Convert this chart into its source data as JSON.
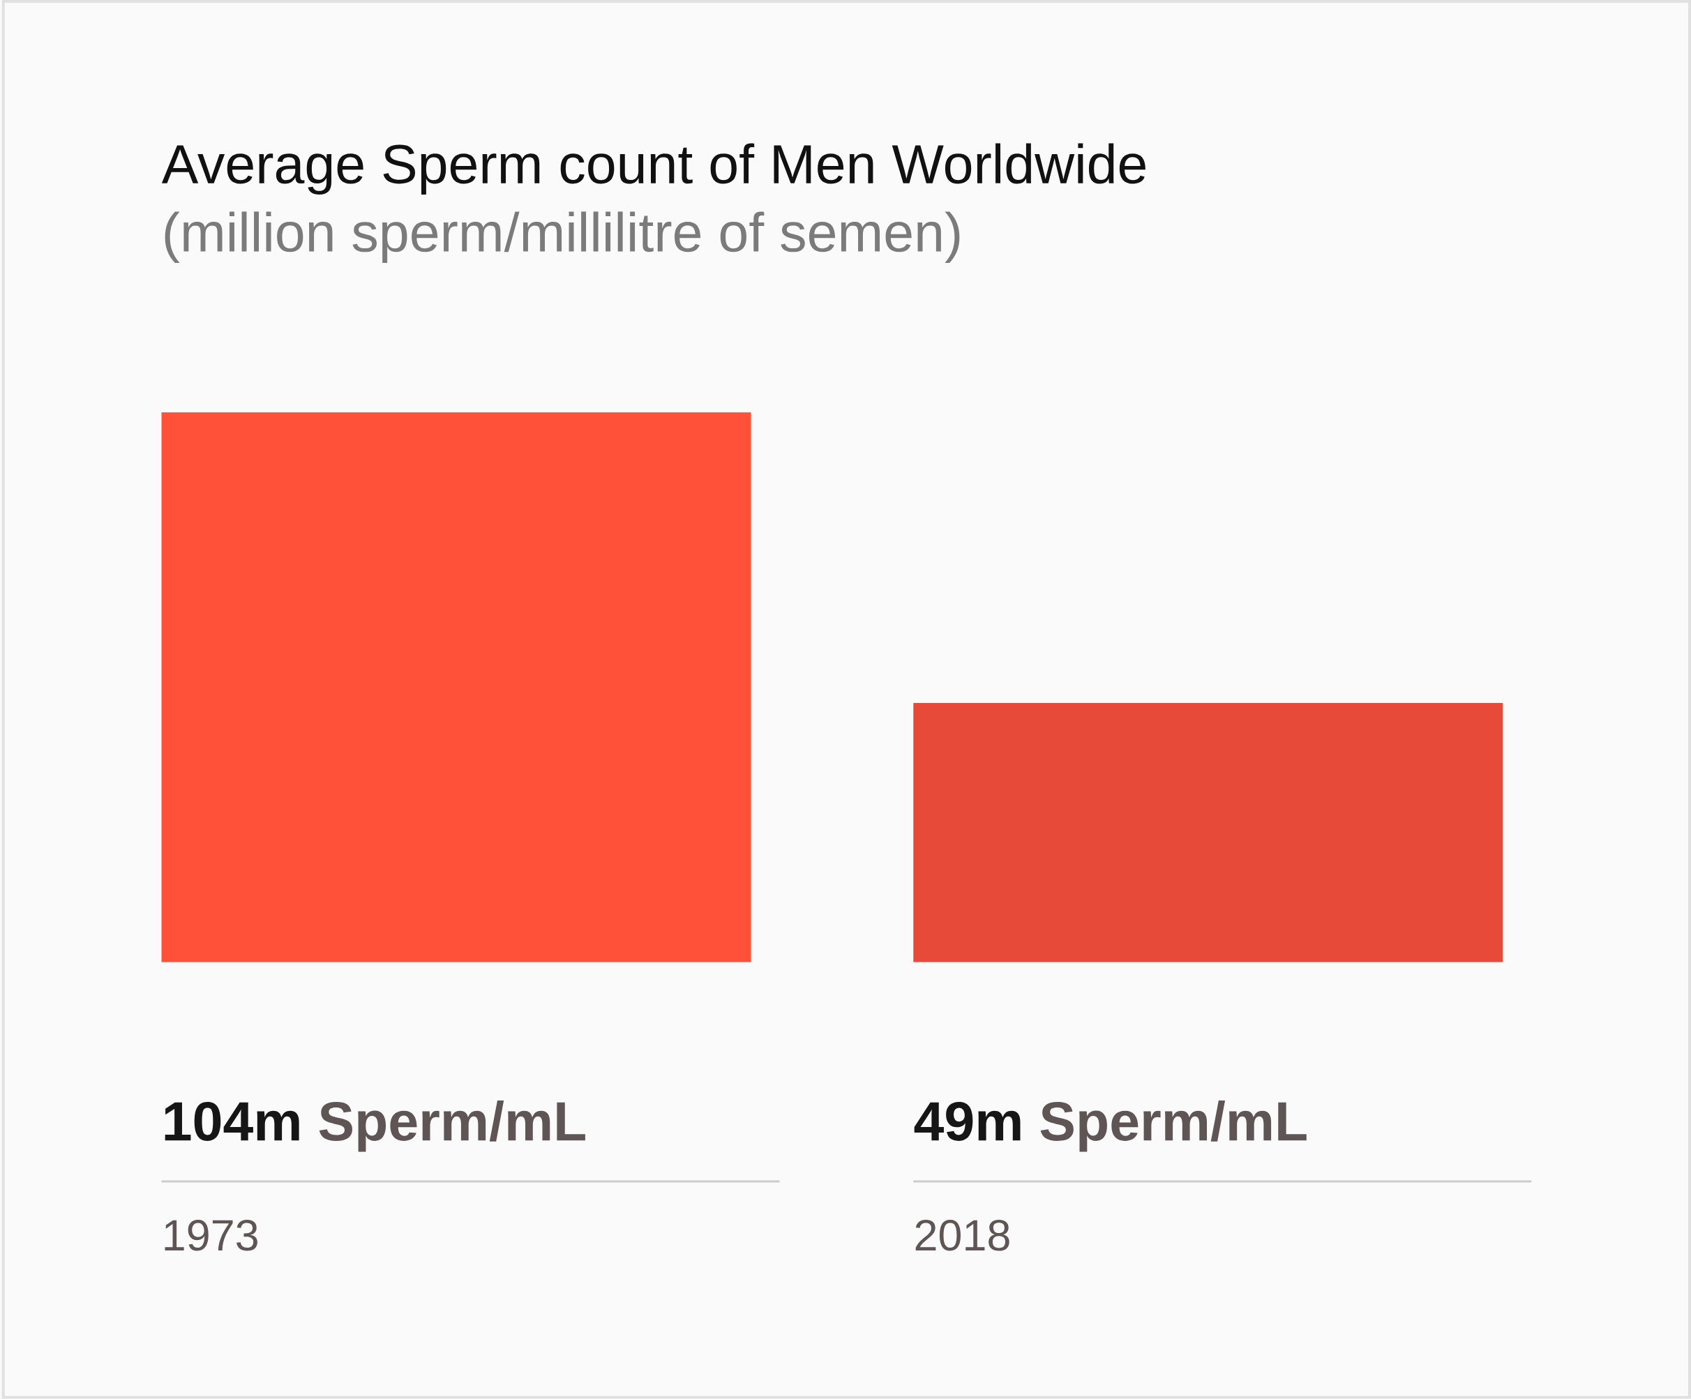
{
  "chart_data": {
    "type": "bar",
    "title": "Average Sperm count of Men Worldwide",
    "subtitle": "(million sperm/millilitre of semen)",
    "categories": [
      "1973",
      "2018"
    ],
    "values": [
      104,
      49
    ],
    "value_labels": [
      "**104m** Sperm/mL",
      "**49m** Sperm/mL"
    ],
    "colors": [
      "#ff5039",
      "#e84a39"
    ]
  }
}
